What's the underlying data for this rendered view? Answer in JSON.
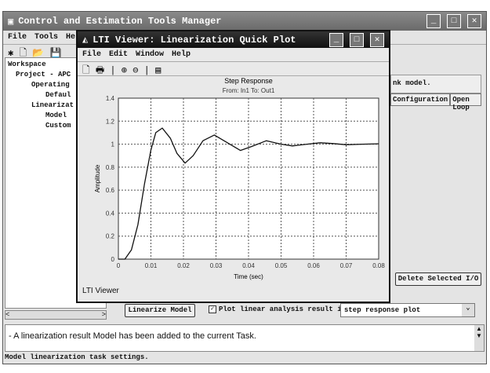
{
  "main_window": {
    "title": "Control and Estimation Tools Manager",
    "menu": [
      "File",
      "Tools",
      "Help"
    ],
    "tree": {
      "items": [
        "Workspace",
        "Project - APC",
        "Operating",
        "Defaul",
        "Linearizat",
        "Model",
        "Custom"
      ]
    },
    "description_fragment": "nk model.",
    "table_headers": [
      "Configuration",
      "Open Loop"
    ],
    "delete_button": "Delete Selected I/O",
    "linearize_button": "Linearize Model",
    "plot_checkbox_label": "Plot linear analysis result in a",
    "plot_checkbox_checked": true,
    "plot_type_select": "step response plot",
    "message": "- A linearization result Model has been added to the current Task.",
    "status": "Model linearization task settings."
  },
  "lti_viewer": {
    "title": "LTI Viewer: Linearization Quick Plot",
    "menu": [
      "File",
      "Edit",
      "Window",
      "Help"
    ],
    "status": "LTI Viewer"
  },
  "chart_data": {
    "type": "line",
    "title": "Step Response",
    "subtitle": "From: In1  To: Out1",
    "xlabel": "Time (sec)",
    "ylabel": "Amplitude",
    "xlim": [
      0,
      0.08
    ],
    "ylim": [
      0,
      1.4
    ],
    "grid": true,
    "xticks": [
      "0",
      "0.01",
      "0.02",
      "0.03",
      "0.04",
      "0.05",
      "0.06",
      "0.07",
      "0.08"
    ],
    "yticks": [
      "0",
      "0.2",
      "0.4",
      "0.6",
      "0.8",
      "1",
      "1.2",
      "1.4"
    ],
    "series": [
      {
        "x": [
          0,
          0.002,
          0.004,
          0.006,
          0.008,
          0.01,
          0.0115,
          0.0135,
          0.016,
          0.018,
          0.0205,
          0.023,
          0.026,
          0.0295,
          0.033,
          0.0375,
          0.041,
          0.0455,
          0.05,
          0.0535,
          0.058,
          0.062,
          0.066,
          0.07,
          0.075,
          0.08
        ],
        "y": [
          0,
          0,
          0.08,
          0.3,
          0.65,
          0.95,
          1.1,
          1.14,
          1.05,
          0.92,
          0.835,
          0.9,
          1.03,
          1.08,
          1.02,
          0.945,
          0.98,
          1.03,
          1.0,
          0.985,
          1.0,
          1.012,
          1.005,
          0.995,
          1.0,
          1.003
        ]
      }
    ]
  }
}
